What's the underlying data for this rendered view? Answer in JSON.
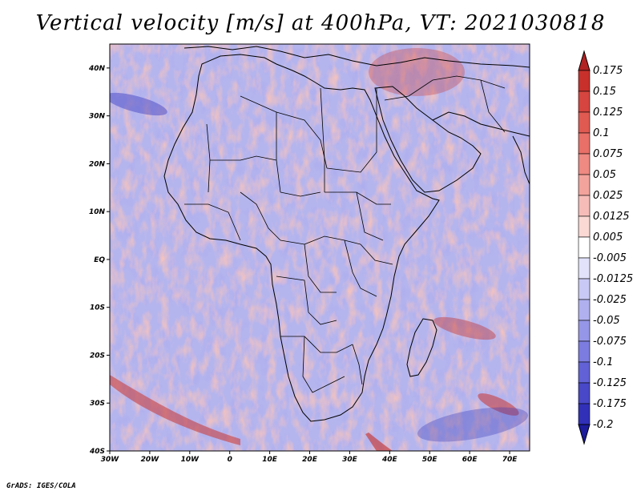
{
  "title": "Vertical velocity [m/s] at 400hPa, VT: 2021030818",
  "footer": "GrADS: IGES/COLA",
  "map": {
    "lon_range": [
      -30,
      75
    ],
    "lat_range": [
      -40,
      45
    ],
    "lon_ticks": [
      "30W",
      "20W",
      "10W",
      "0",
      "10E",
      "20E",
      "30E",
      "40E",
      "50E",
      "60E",
      "70E"
    ],
    "lat_ticks": [
      "40N",
      "30N",
      "20N",
      "10N",
      "EQ",
      "10S",
      "20S",
      "30S",
      "40S"
    ]
  },
  "colorbar": {
    "labels": [
      "0.175",
      "0.15",
      "0.125",
      "0.1",
      "0.075",
      "0.05",
      "0.025",
      "0.0125",
      "0.005",
      "-0.005",
      "-0.0125",
      "-0.025",
      "-0.05",
      "-0.075",
      "-0.1",
      "-0.125",
      "-0.175",
      "-0.2"
    ],
    "colors": [
      "#b22222",
      "#c8302c",
      "#d6453f",
      "#e05a52",
      "#e87068",
      "#ee8a82",
      "#f2a39c",
      "#f6bdb8",
      "#fad8d4",
      "#ffffff",
      "#e2e2fb",
      "#c9c9f5",
      "#b0b0ef",
      "#9696e8",
      "#7c7ce0",
      "#6262d6",
      "#4848c8",
      "#3030b8",
      "#1c1c9c"
    ]
  },
  "colors": {
    "ocean_base": "#b5b5ee",
    "positive": "#f08b80",
    "negative": "#7a7ae2",
    "border": "#000000"
  }
}
